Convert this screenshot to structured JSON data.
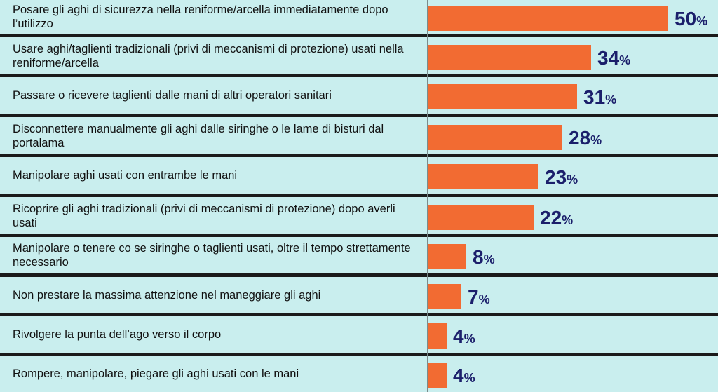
{
  "chart_data": {
    "type": "bar",
    "orientation": "horizontal",
    "unit": "%",
    "categories": [
      "Posare gli aghi di sicurezza nella reniforme/arcella immediatamente dopo l’utilizzo",
      "Usare aghi/taglienti tradizionali (privi di meccanismi di protezione) usati nella reniforme/arcella",
      "Passare o ricevere taglienti dalle mani di altri operatori sanitari",
      "Disconnettere manualmente gli aghi dalle siringhe o le lame di bisturi dal portalama",
      "Manipolare aghi usati con entrambe le mani",
      "Ricoprire gli aghi tradizionali (privi di meccanismi di protezione) dopo averli usati",
      "Manipolare o tenere co se siringhe o taglienti usati, oltre il tempo strettamente necessario",
      "Non prestare la massima attenzione nel maneggiare gli aghi",
      "Rivolgere la punta dell’ago verso il corpo",
      "Rompere, manipolare, piegare gli aghi usati con le mani"
    ],
    "values": [
      50,
      34,
      31,
      28,
      23,
      22,
      8,
      7,
      4,
      4
    ],
    "xlim": [
      0,
      50
    ],
    "grid": false,
    "bar_color": "#f26b32",
    "value_label_color": "#1b1f6b",
    "row_background": "#c9eeee"
  }
}
